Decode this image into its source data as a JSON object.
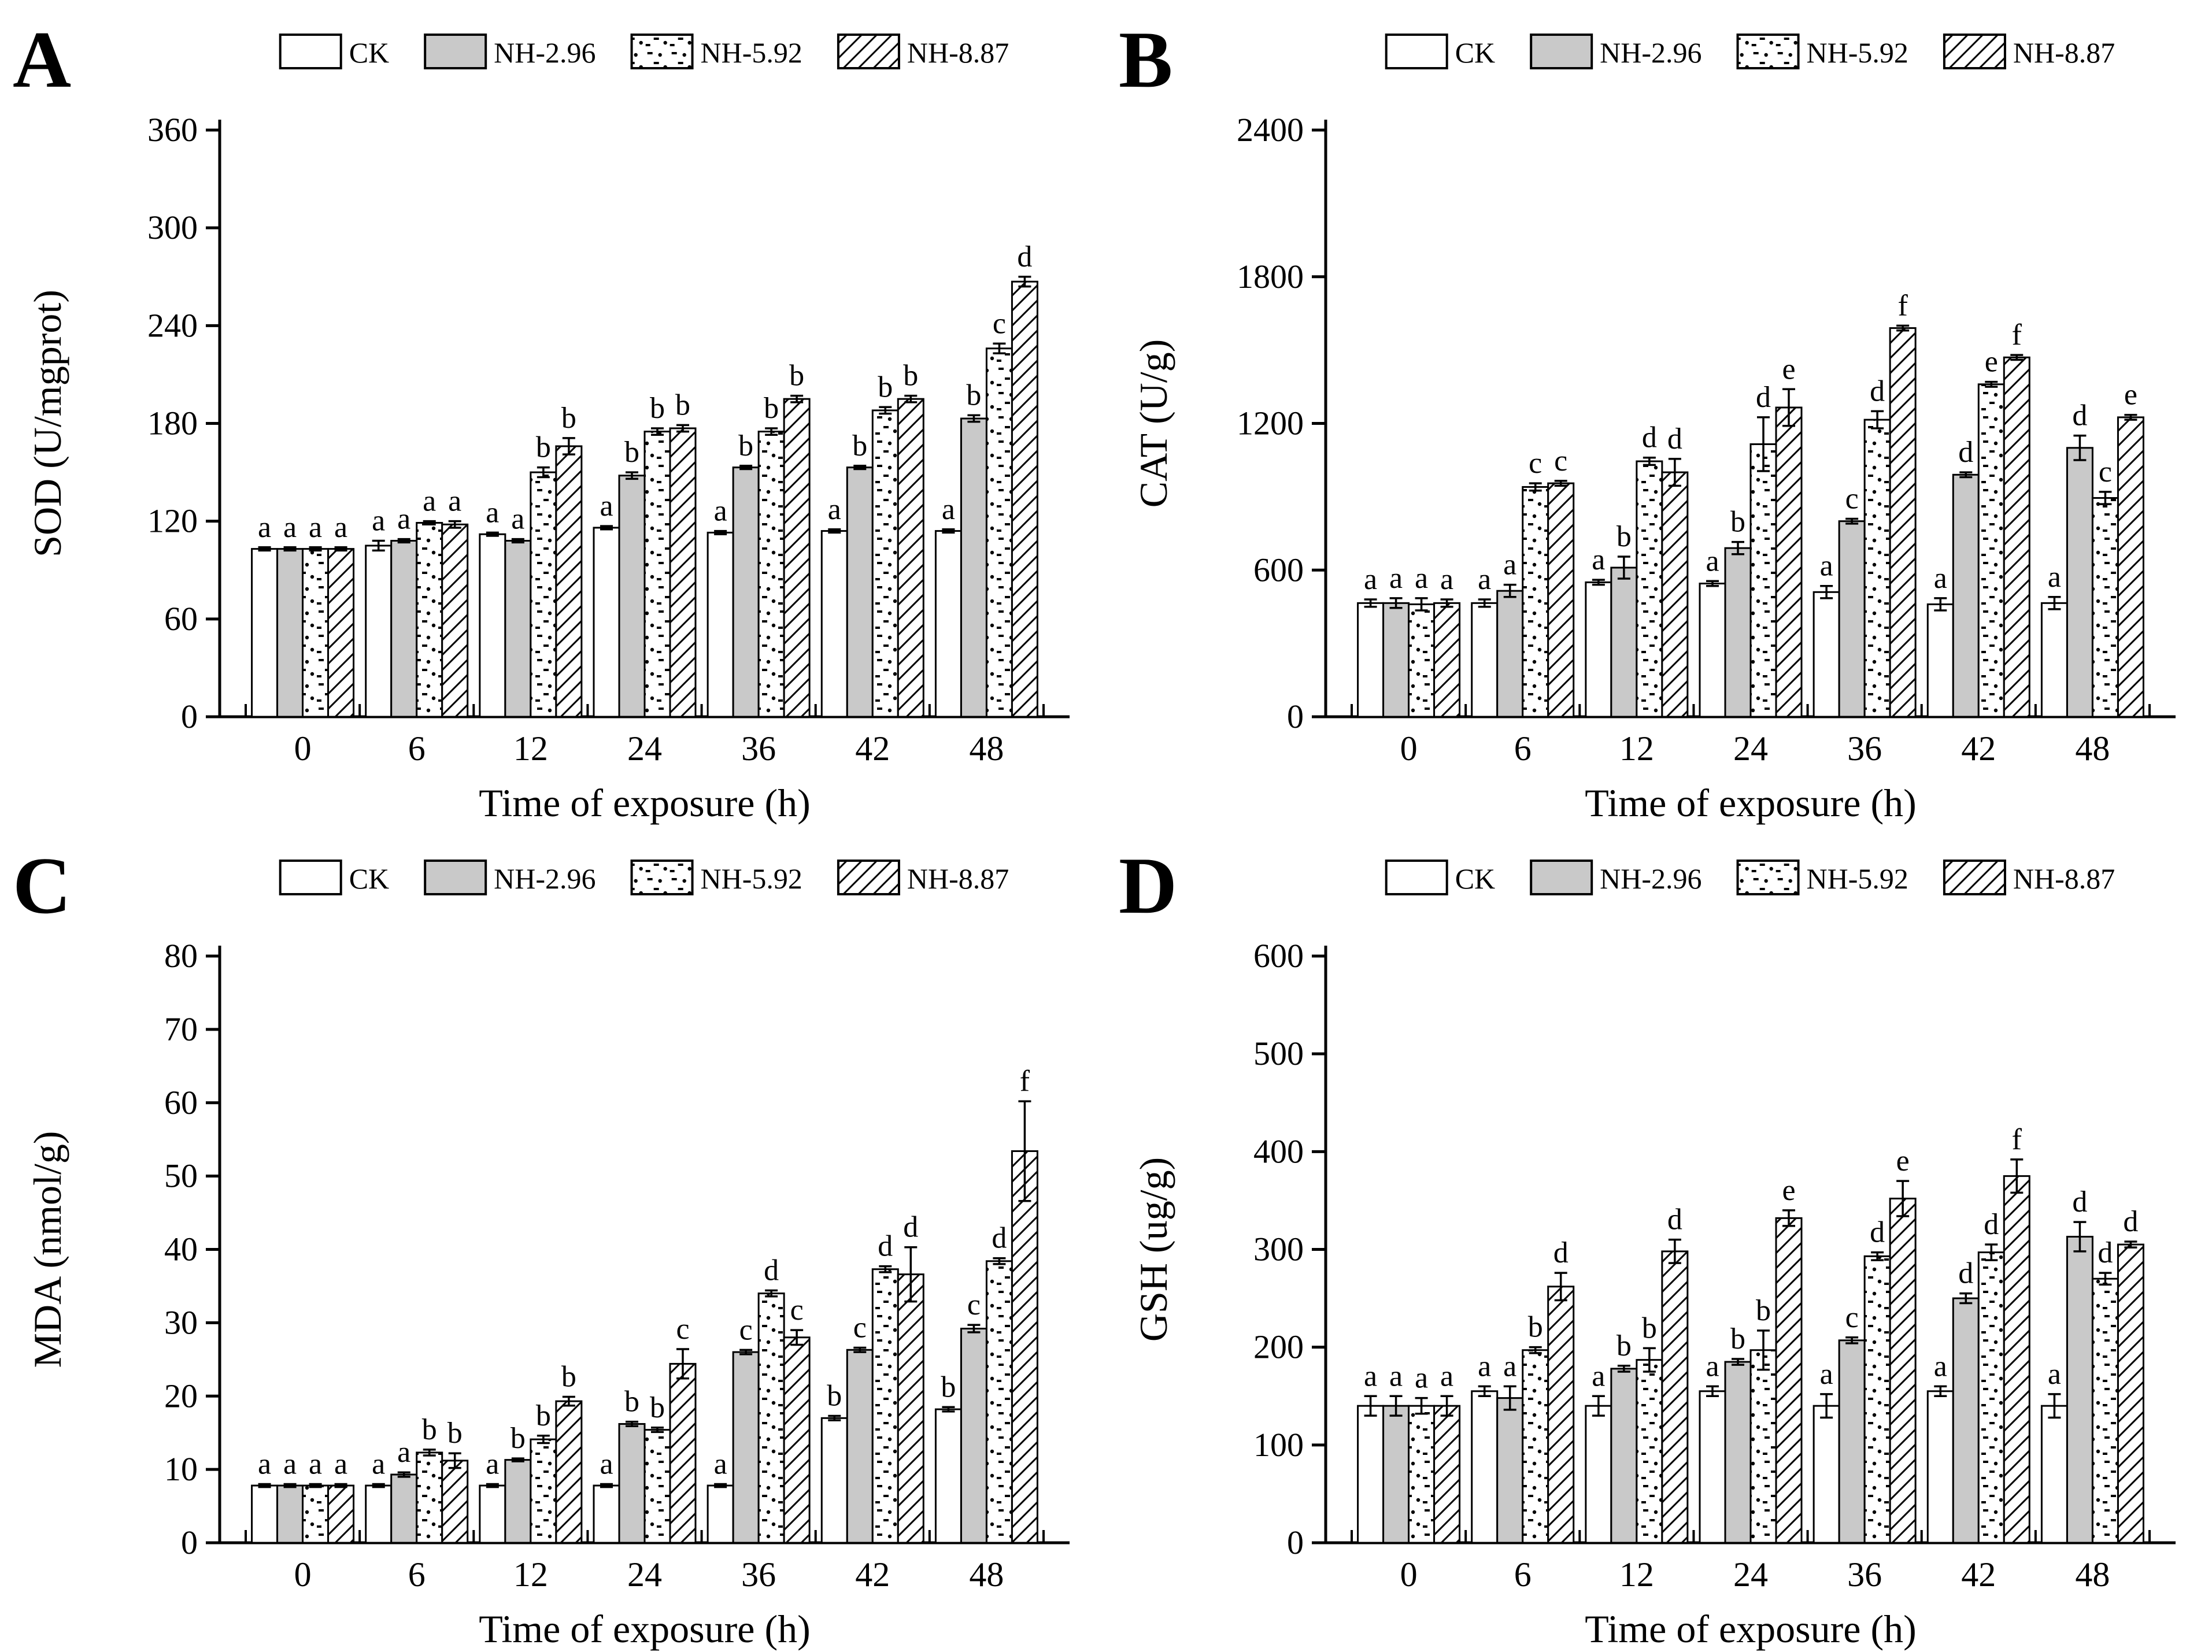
{
  "figure": {
    "background": "#ffffff",
    "axis_color": "#000000",
    "text_color": "#000000"
  },
  "legend": {
    "entries": [
      {
        "label": "CK",
        "swatch": "white"
      },
      {
        "label": "NH-2.96",
        "swatch": "gray"
      },
      {
        "label": "NH-5.92",
        "swatch": "dots"
      },
      {
        "label": "NH-8.87",
        "swatch": "hatch"
      }
    ]
  },
  "colors": {
    "white_fill": "#ffffff",
    "gray_fill": "#c9c9c9",
    "bar_stroke": "#000000"
  },
  "chart_data": [
    {
      "type": "bar",
      "panel_label": "A",
      "ylabel": "SOD (U/mgprot)",
      "xlabel": "Time of exposure (h)",
      "ylim": [
        0,
        360
      ],
      "ytick_step": 60,
      "grid": false,
      "legend_position": "top",
      "categories": [
        "0",
        "6",
        "12",
        "24",
        "36",
        "42",
        "48"
      ],
      "series": [
        {
          "name": "CK",
          "values": [
            103,
            105,
            112,
            116,
            113,
            114,
            114
          ],
          "errors": [
            1,
            3,
            1,
            1,
            1,
            1,
            1
          ],
          "letters": [
            "a",
            "a",
            "a",
            "a",
            "a",
            "a",
            "a"
          ]
        },
        {
          "name": "NH-2.96",
          "values": [
            103,
            108,
            108,
            148,
            153,
            153,
            183
          ],
          "errors": [
            1,
            1,
            1,
            2,
            1,
            1,
            2
          ],
          "letters": [
            "a",
            "a",
            "a",
            "b",
            "b",
            "b",
            "b"
          ]
        },
        {
          "name": "NH-5.92",
          "values": [
            103,
            119,
            150,
            175,
            175,
            188,
            226
          ],
          "errors": [
            1,
            1,
            3,
            2,
            2,
            2,
            3
          ],
          "letters": [
            "a",
            "a",
            "b",
            "b",
            "b",
            "b",
            "c"
          ]
        },
        {
          "name": "NH-8.87",
          "values": [
            103,
            118,
            166,
            177,
            195,
            195,
            267
          ],
          "errors": [
            1,
            2,
            5,
            2,
            2,
            2,
            3
          ],
          "letters": [
            "a",
            "a",
            "b",
            "b",
            "b",
            "b",
            "d"
          ]
        }
      ]
    },
    {
      "type": "bar",
      "panel_label": "B",
      "ylabel": "CAT (U/g)",
      "xlabel": "Time of exposure (h)",
      "ylim": [
        0,
        2400
      ],
      "ytick_step": 600,
      "grid": false,
      "legend_position": "top",
      "categories": [
        "0",
        "6",
        "12",
        "24",
        "36",
        "42",
        "48"
      ],
      "series": [
        {
          "name": "CK",
          "values": [
            465,
            465,
            550,
            545,
            510,
            460,
            465
          ],
          "errors": [
            15,
            15,
            10,
            10,
            25,
            25,
            25
          ],
          "letters": [
            "a",
            "a",
            "a",
            "a",
            "a",
            "a",
            "a"
          ]
        },
        {
          "name": "NH-2.96",
          "values": [
            465,
            515,
            610,
            690,
            800,
            990,
            1100
          ],
          "errors": [
            20,
            25,
            45,
            25,
            10,
            10,
            50
          ],
          "letters": [
            "a",
            "a",
            "b",
            "b",
            "c",
            "d",
            "d"
          ]
        },
        {
          "name": "NH-5.92",
          "values": [
            460,
            940,
            1045,
            1115,
            1215,
            1360,
            895
          ],
          "errors": [
            25,
            15,
            15,
            110,
            35,
            10,
            25
          ],
          "letters": [
            "a",
            "c",
            "d",
            "d",
            "d",
            "e",
            "c"
          ]
        },
        {
          "name": "NH-8.87",
          "values": [
            465,
            955,
            1000,
            1265,
            1590,
            1470,
            1225
          ],
          "errors": [
            15,
            10,
            55,
            75,
            10,
            10,
            10
          ],
          "letters": [
            "a",
            "c",
            "d",
            "e",
            "f",
            "f",
            "e"
          ]
        }
      ]
    },
    {
      "type": "bar",
      "panel_label": "C",
      "ylabel": "MDA (nmol/g)",
      "xlabel": "Time of exposure (h)",
      "ylim": [
        0,
        80
      ],
      "ytick_step": 10,
      "grid": false,
      "legend_position": "top",
      "categories": [
        "0",
        "6",
        "12",
        "24",
        "36",
        "42",
        "48"
      ],
      "series": [
        {
          "name": "CK",
          "values": [
            7.8,
            7.8,
            7.8,
            7.8,
            7.8,
            17.0,
            18.2
          ],
          "errors": [
            0.2,
            0.2,
            0.2,
            0.2,
            0.2,
            0.3,
            0.3
          ],
          "letters": [
            "a",
            "a",
            "a",
            "a",
            "a",
            "b",
            "b"
          ]
        },
        {
          "name": "NH-2.96",
          "values": [
            7.8,
            9.3,
            11.3,
            16.2,
            26.0,
            26.3,
            29.2
          ],
          "errors": [
            0.2,
            0.3,
            0.2,
            0.3,
            0.3,
            0.3,
            0.5
          ],
          "letters": [
            "a",
            "a",
            "b",
            "b",
            "c",
            "c",
            "c"
          ]
        },
        {
          "name": "NH-5.92",
          "values": [
            7.8,
            12.3,
            14.1,
            15.4,
            34.0,
            37.3,
            38.4
          ],
          "errors": [
            0.2,
            0.4,
            0.5,
            0.3,
            0.4,
            0.4,
            0.4
          ],
          "letters": [
            "a",
            "b",
            "b",
            "b",
            "d",
            "d",
            "d"
          ]
        },
        {
          "name": "NH-8.87",
          "values": [
            7.8,
            11.2,
            19.3,
            24.4,
            28.0,
            36.6,
            53.4
          ],
          "errors": [
            0.2,
            1.0,
            0.6,
            2.0,
            1.0,
            3.7,
            6.8
          ],
          "letters": [
            "a",
            "b",
            "b",
            "c",
            "c",
            "d",
            "f"
          ]
        }
      ]
    },
    {
      "type": "bar",
      "panel_label": "D",
      "ylabel": "GSH (ug/g)",
      "xlabel": "Time of exposure (h)",
      "ylim": [
        0,
        600
      ],
      "ytick_step": 100,
      "grid": false,
      "legend_position": "top",
      "categories": [
        "0",
        "6",
        "12",
        "24",
        "36",
        "42",
        "48"
      ],
      "series": [
        {
          "name": "CK",
          "values": [
            140,
            155,
            140,
            155,
            140,
            155,
            140
          ],
          "errors": [
            10,
            5,
            10,
            5,
            12,
            5,
            12
          ],
          "letters": [
            "a",
            "a",
            "a",
            "a",
            "a",
            "a",
            "a"
          ]
        },
        {
          "name": "NH-2.96",
          "values": [
            140,
            148,
            178,
            185,
            207,
            250,
            313
          ],
          "errors": [
            10,
            12,
            3,
            3,
            3,
            5,
            15
          ],
          "letters": [
            "a",
            "a",
            "b",
            "b",
            "c",
            "d",
            "d"
          ]
        },
        {
          "name": "NH-5.92",
          "values": [
            140,
            197,
            187,
            197,
            293,
            297,
            270
          ],
          "errors": [
            8,
            3,
            12,
            20,
            4,
            8,
            6
          ],
          "letters": [
            "a",
            "b",
            "b",
            "b",
            "d",
            "d",
            "d"
          ]
        },
        {
          "name": "NH-8.87",
          "values": [
            140,
            262,
            298,
            332,
            352,
            375,
            305
          ],
          "errors": [
            10,
            14,
            12,
            8,
            18,
            17,
            3
          ],
          "letters": [
            "a",
            "d",
            "d",
            "e",
            "e",
            "f",
            "d"
          ]
        }
      ]
    }
  ]
}
